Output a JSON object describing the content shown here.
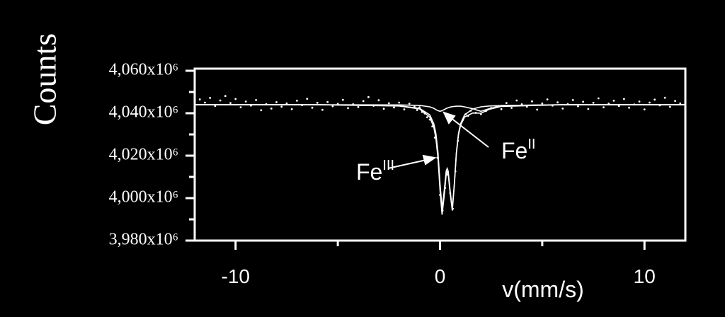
{
  "chart_data": {
    "type": "scatter",
    "x_label": "v(mm/s)",
    "y_label": "Counts",
    "xlim": [
      -12,
      12
    ],
    "ylim": [
      3980000000.0,
      4061000000.0
    ],
    "xticks": [
      -10,
      0,
      10
    ],
    "xminorticks": [
      -5,
      5
    ],
    "yticks": [
      {
        "value": 3980000000.0,
        "label": "3,980x10⁶"
      },
      {
        "value": 4000000000.0,
        "label": "4,000x10⁶"
      },
      {
        "value": 4020000000.0,
        "label": "4,020x10⁶"
      },
      {
        "value": 4040000000.0,
        "label": "4,040x10⁶"
      },
      {
        "value": 4060000000.0,
        "label": "4,060x10⁶"
      }
    ],
    "yminorticks": [
      3990000000.0,
      4010000000.0,
      4030000000.0,
      4050000000.0
    ],
    "annotations": [
      {
        "text": "Fe",
        "superscript": "III"
      },
      {
        "text": "Fe",
        "superscript": "II"
      }
    ],
    "series": [
      {
        "type": "scatter",
        "color": "#ffffff",
        "x": [
          -11.75,
          -11.5,
          -11.25,
          -11,
          -10.75,
          -10.5,
          -10.25,
          -10,
          -9.75,
          -9.5,
          -9.25,
          -9,
          -8.75,
          -8.5,
          -8.25,
          -8,
          -7.75,
          -7.5,
          -7.25,
          -7,
          -6.75,
          -6.5,
          -6.25,
          -6,
          -5.75,
          -5.5,
          -5.25,
          -5,
          -4.75,
          -4.5,
          -4.25,
          -4,
          -3.75,
          -3.5,
          -3.25,
          -3,
          -2.75,
          -2.5,
          -2.25,
          -2,
          -1.75,
          -1.5,
          -1.25,
          -1.125,
          -1,
          -0.875,
          -0.75,
          -0.625,
          -0.5,
          -0.375,
          -0.25,
          -0.125,
          0,
          0.125,
          0.25,
          0.375,
          0.5,
          0.625,
          0.75,
          0.875,
          1,
          1.125,
          1.25,
          1.375,
          1.5,
          1.75,
          2,
          2.25,
          2.5,
          2.75,
          3,
          3.25,
          3.5,
          3.75,
          4,
          4.25,
          4.5,
          4.75,
          5,
          5.25,
          5.5,
          5.75,
          6,
          6.25,
          6.5,
          6.75,
          7,
          7.25,
          7.5,
          7.75,
          8,
          8.25,
          8.5,
          8.75,
          9,
          9.25,
          9.5,
          9.75,
          10,
          10.25,
          10.5,
          10.75,
          11,
          11.25,
          11.5,
          11.75
        ],
        "values": [
          4046500000.0,
          4045000000.0,
          4047200000.0,
          4043400000.0,
          4046000000.0,
          4048100000.0,
          4044800000.0,
          4046700000.0,
          4042800000.0,
          4045500000.0,
          4043600000.0,
          4046200000.0,
          4041400000.0,
          4044300000.0,
          4042200000.0,
          4045200000.0,
          4043100000.0,
          4044600000.0,
          4041900000.0,
          4045900000.0,
          4043800000.0,
          4046800000.0,
          4042600000.0,
          4044900000.0,
          4041600000.0,
          4045300000.0,
          4043300000.0,
          4044400000.0,
          4046300000.0,
          4042400000.0,
          4044200000.0,
          4042900000.0,
          4045700000.0,
          4047600000.0,
          4043500000.0,
          4046100000.0,
          4042100000.0,
          4044700000.0,
          4042700000.0,
          4045000000.0,
          4041800000.0,
          4044500000.0,
          4043000000.0,
          4041500000.0,
          4042800000.0,
          4040600000.0,
          4039900000.0,
          4038100000.0,
          4037000000.0,
          4033800000.0,
          4028500000.0,
          4019000000.0,
          4001500000.0,
          3994200000.0,
          4004800000.0,
          4011000000.0,
          4002300000.0,
          3995000000.0,
          4012600000.0,
          4027000000.0,
          4034500000.0,
          4036900000.0,
          4039500000.0,
          4038800000.0,
          4041200000.0,
          4040200000.0,
          4039600000.0,
          4041000000.0,
          4042500000.0,
          4043100000.0,
          4041900000.0,
          4044800000.0,
          4042500000.0,
          4046000000.0,
          4044200000.0,
          4043100000.0,
          4045600000.0,
          4041700000.0,
          4044600000.0,
          4046500000.0,
          4043600000.0,
          4045100000.0,
          4042200000.0,
          4044300000.0,
          4046200000.0,
          4043300000.0,
          4045400000.0,
          4042000000.0,
          4044900000.0,
          4047000000.0,
          4042800000.0,
          4044500000.0,
          4045900000.0,
          4043400000.0,
          4046700000.0,
          4042600000.0,
          4044100000.0,
          4045500000.0,
          4041800000.0,
          4045000000.0,
          4046400000.0,
          4043700000.0,
          4047300000.0,
          4043000000.0,
          4045800000.0,
          4044600000.0
        ]
      },
      {
        "type": "line",
        "color": "#ffffff",
        "x": [
          -12,
          -6,
          -2,
          -1,
          -0.5,
          -0.3,
          -0.2,
          -0.1,
          0,
          0.1,
          0.2,
          0.3,
          0.35,
          0.4,
          0.5,
          0.6,
          0.7,
          0.8,
          0.9,
          1,
          1.2,
          1.6,
          2,
          2.4,
          3,
          6,
          12
        ],
        "values": [
          4044000000.0,
          4044000000.0,
          4043400000.0,
          4042000000.0,
          4038200000.0,
          4033200000.0,
          4028000000.0,
          4018800000.0,
          4003700000.0,
          3992200000.0,
          4000700000.0,
          4010900000.0,
          4012400000.0,
          4011300000.0,
          4001900000.0,
          3994100000.0,
          4006000000.0,
          4020900000.0,
          4029600000.0,
          4034200000.0,
          4038200000.0,
          4040100000.0,
          4040000000.0,
          4041800000.0,
          4043200000.0,
          4044000000.0,
          4044000000.0
        ]
      },
      {
        "type": "line",
        "color": "#ffffff",
        "x": [
          -12,
          -6,
          -2,
          -1,
          -0.5,
          -0.3,
          -0.2,
          -0.1,
          0,
          0.1,
          0.2,
          0.3,
          0.35,
          0.4,
          0.5,
          0.6,
          0.7,
          0.8,
          0.9,
          1,
          1.2,
          1.6,
          2,
          2.4,
          3,
          6,
          12
        ],
        "values": [
          4044000000.0,
          4044000000.0,
          4043500000.0,
          4042300000.0,
          4039200000.0,
          4034900000.0,
          4030300000.0,
          4021600000.0,
          4006800000.0,
          3995000000.0,
          4003000000.0,
          4012700000.0,
          4014000000.0,
          4012700000.0,
          4003000000.0,
          3995000000.0,
          4006800000.0,
          4021600000.0,
          4030300000.0,
          4034900000.0,
          4039200000.0,
          4042000000.0,
          4043000000.0,
          4043400000.0,
          4043600000.0,
          4044000000.0,
          4044000000.0
        ]
      },
      {
        "type": "line",
        "color": "#ffffff",
        "x": [
          -12,
          -6,
          -2,
          -1,
          -0.5,
          -0.3,
          -0.2,
          -0.1,
          0,
          0.1,
          0.2,
          0.3,
          0.35,
          0.4,
          0.5,
          0.6,
          0.7,
          0.8,
          0.9,
          1,
          1.2,
          1.6,
          2,
          2.4,
          3,
          6,
          12
        ],
        "values": [
          4044000000.0,
          4044000000.0,
          4043900000.0,
          4043700000.0,
          4043000000.0,
          4042300000.0,
          4041700000.0,
          4041200000.0,
          4040900000.0,
          4041200000.0,
          4041700000.0,
          4042200000.0,
          4042400000.0,
          4042600000.0,
          4042900000.0,
          4043100000.0,
          4043200000.0,
          4043300000.0,
          4043300000.0,
          4043300000.0,
          4043000000.0,
          4042100000.0,
          4040900000.0,
          4042100000.0,
          4043600000.0,
          4044000000.0,
          4044000000.0
        ]
      }
    ]
  }
}
